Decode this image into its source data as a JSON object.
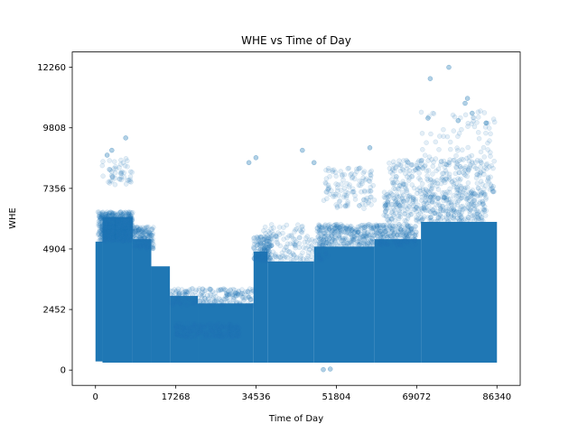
{
  "chart_data": {
    "type": "scatter",
    "title": "WHE vs Time of Day",
    "xlabel": "Time of Day",
    "ylabel": "WHE",
    "xlim": [
      -5000,
      91340
    ],
    "ylim": [
      -620,
      12880
    ],
    "xticks": [
      0,
      17268,
      34536,
      51804,
      69072,
      86340
    ],
    "yticks": [
      0,
      2452,
      4904,
      7356,
      9808,
      12260
    ],
    "grid": false,
    "marker_color": "#1f77b4",
    "marker_alpha": 0.12,
    "density_bands": [
      {
        "x": [
          0,
          1500
        ],
        "y": [
          350,
          5200
        ]
      },
      {
        "x": [
          1500,
          8000
        ],
        "y": [
          300,
          6200
        ]
      },
      {
        "x": [
          8000,
          12000
        ],
        "y": [
          300,
          5300
        ]
      },
      {
        "x": [
          12000,
          16000
        ],
        "y": [
          300,
          4200
        ]
      },
      {
        "x": [
          16000,
          22000
        ],
        "y": [
          300,
          3000
        ]
      },
      {
        "x": [
          22000,
          34000
        ],
        "y": [
          300,
          2700
        ]
      },
      {
        "x": [
          34000,
          37000
        ],
        "y": [
          300,
          4800
        ]
      },
      {
        "x": [
          37000,
          47000
        ],
        "y": [
          300,
          4400
        ]
      },
      {
        "x": [
          47000,
          60000
        ],
        "y": [
          300,
          5000
        ]
      },
      {
        "x": [
          60000,
          70000
        ],
        "y": [
          300,
          5300
        ]
      },
      {
        "x": [
          70000,
          86340
        ],
        "y": [
          300,
          6000
        ]
      }
    ],
    "clusters": [
      {
        "x": [
          500,
          8000
        ],
        "y": [
          5200,
          6400
        ],
        "n": 520
      },
      {
        "x": [
          8000,
          12500
        ],
        "y": [
          4900,
          5800
        ],
        "n": 160
      },
      {
        "x": [
          1000,
          8000
        ],
        "y": [
          7500,
          8600
        ],
        "n": 50
      },
      {
        "x": [
          17000,
          31000
        ],
        "y": [
          1300,
          1900
        ],
        "n": 260
      },
      {
        "x": [
          16000,
          34000
        ],
        "y": [
          2600,
          3300
        ],
        "n": 220
      },
      {
        "x": [
          34000,
          38000
        ],
        "y": [
          4400,
          5400
        ],
        "n": 130
      },
      {
        "x": [
          36000,
          50000
        ],
        "y": [
          4400,
          5900
        ],
        "n": 160
      },
      {
        "x": [
          48000,
          69000
        ],
        "y": [
          5000,
          5900
        ],
        "n": 520
      },
      {
        "x": [
          49000,
          60000
        ],
        "y": [
          6500,
          8200
        ],
        "n": 120
      },
      {
        "x": [
          62000,
          84000
        ],
        "y": [
          6000,
          7200
        ],
        "n": 400
      },
      {
        "x": [
          63000,
          86000
        ],
        "y": [
          7200,
          8500
        ],
        "n": 250
      },
      {
        "x": [
          70000,
          86000
        ],
        "y": [
          8500,
          10500
        ],
        "n": 70
      }
    ],
    "outliers": [
      {
        "x": 76000,
        "y": 12260
      },
      {
        "x": 72000,
        "y": 11800
      },
      {
        "x": 80000,
        "y": 11000
      },
      {
        "x": 79500,
        "y": 10800
      },
      {
        "x": 71500,
        "y": 10200
      },
      {
        "x": 81000,
        "y": 10400
      },
      {
        "x": 78000,
        "y": 10100
      },
      {
        "x": 84000,
        "y": 10000
      },
      {
        "x": 6500,
        "y": 9400
      },
      {
        "x": 3500,
        "y": 8900
      },
      {
        "x": 2500,
        "y": 8700
      },
      {
        "x": 44500,
        "y": 8900
      },
      {
        "x": 33000,
        "y": 8400
      },
      {
        "x": 34500,
        "y": 8600
      },
      {
        "x": 59000,
        "y": 9000
      },
      {
        "x": 47000,
        "y": 8400
      },
      {
        "x": 49000,
        "y": 20
      },
      {
        "x": 50500,
        "y": 40
      }
    ]
  }
}
